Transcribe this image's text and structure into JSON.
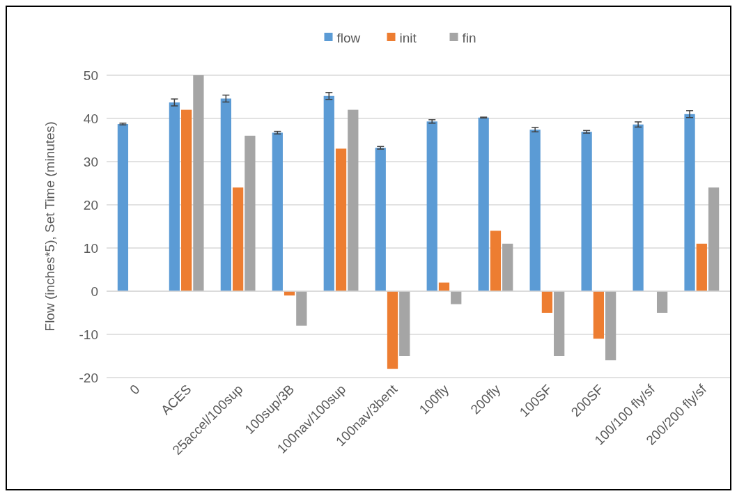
{
  "chart_data": {
    "type": "bar",
    "ylabel": "Flow (inches*5), Set Time (minutes)",
    "categories": [
      "0",
      "ACES",
      "25accel/100sup",
      "100sup/3B",
      "100nav/100sup",
      "100nav/3bent",
      "100fly",
      "200fly",
      "100SF",
      "200SF",
      "100/100 fly/sf",
      "200/200 fly/sf"
    ],
    "series": [
      {
        "name": "flow",
        "color": "#5b9bd5",
        "values": [
          38.7,
          43.7,
          44.6,
          36.7,
          45.2,
          33.2,
          39.3,
          40.2,
          37.4,
          36.9,
          38.6,
          41.0
        ],
        "errors": [
          0.2,
          0.8,
          0.8,
          0.3,
          0.8,
          0.3,
          0.4,
          0.1,
          0.5,
          0.3,
          0.6,
          0.8
        ]
      },
      {
        "name": "init",
        "color": "#ed7d31",
        "values": [
          null,
          42,
          24,
          -1,
          33,
          -18,
          2,
          14,
          -5,
          -11,
          null,
          11
        ]
      },
      {
        "name": "fin",
        "color": "#a5a5a5",
        "values": [
          null,
          50,
          36,
          -8,
          42,
          -15,
          -3,
          11,
          -15,
          -16,
          -5,
          24
        ]
      }
    ],
    "ylim": [
      -20,
      50
    ],
    "yticks": [
      -20,
      -10,
      0,
      10,
      20,
      30,
      40,
      50
    ],
    "grid": "y",
    "legend": "top"
  }
}
